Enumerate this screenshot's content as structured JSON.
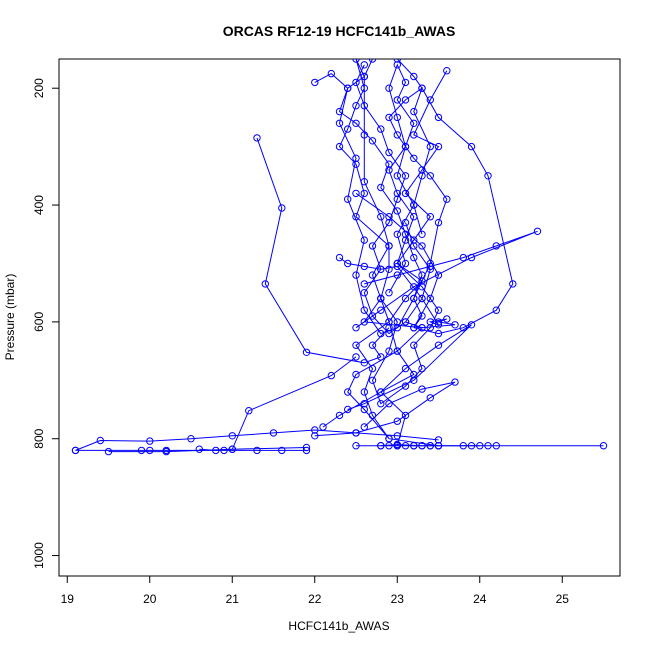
{
  "chart_data": {
    "type": "line",
    "title": "ORCAS RF12-19 HCFC141b_AWAS",
    "xlabel": "HCFC141b_AWAS",
    "ylabel": "Pressure (mbar)",
    "xlim": [
      18.9,
      25.7
    ],
    "ylim": [
      1035,
      150
    ],
    "y_reversed": true,
    "x_ticks": [
      19,
      20,
      21,
      22,
      23,
      24,
      25
    ],
    "y_ticks": [
      200,
      400,
      600,
      800,
      1000
    ],
    "grid": false,
    "legend": "none",
    "line_color": "#0000ff",
    "marker": "open-circle",
    "series": [
      {
        "x": [
          23.5,
          22.9,
          22.6,
          22.4,
          22.5,
          23.0,
          23.3,
          22.6,
          22.8,
          22.7,
          22.9,
          22.5,
          22.6,
          22.5,
          22.3,
          22.4,
          22.5,
          22.6,
          22.5,
          22.6,
          22.6,
          22.6,
          22.8,
          22.9,
          22.9,
          22.8,
          22.9,
          22.5,
          22.7,
          22.6,
          22.7,
          22.9
        ],
        "y": [
          812,
          800,
          750,
          720,
          690,
          650,
          610,
          600,
          560,
          520,
          470,
          420,
          380,
          330,
          300,
          270,
          230,
          200,
          150,
          180,
          280,
          360,
          420,
          470,
          510,
          560,
          600,
          640,
          680,
          720,
          760,
          800
        ]
      },
      {
        "x": [
          23.0,
          23.1,
          22.8,
          23.2,
          23.0,
          22.9,
          23.1,
          23.3,
          23.0,
          23.1,
          23.2,
          23.0,
          22.9,
          23.1,
          23.2,
          23.0,
          23.1,
          23.0,
          22.9,
          23.0,
          23.1,
          23.0,
          23.2,
          23.0,
          23.1,
          22.9
        ],
        "y": [
          812,
          760,
          720,
          690,
          650,
          600,
          560,
          530,
          500,
          460,
          420,
          380,
          340,
          300,
          260,
          220,
          190,
          160,
          200,
          250,
          300,
          350,
          400,
          450,
          500,
          550
        ]
      },
      {
        "x": [
          22.0,
          22.2,
          22.4,
          22.3,
          22.5,
          22.4,
          22.6,
          22.5,
          22.6,
          22.8,
          23.0,
          23.2,
          23.4,
          23.5,
          23.6,
          23.4,
          23.2,
          23.0,
          22.9,
          23.1,
          23.3,
          23.2,
          23.4,
          23.3,
          23.2,
          23.3
        ],
        "y": [
          190,
          175,
          200,
          260,
          320,
          390,
          460,
          520,
          580,
          620,
          610,
          560,
          500,
          430,
          390,
          350,
          320,
          280,
          250,
          220,
          200,
          240,
          300,
          350,
          400,
          450
        ]
      },
      {
        "x": [
          23.6,
          23.4,
          23.2,
          23.5,
          23.3,
          23.1,
          23.4,
          23.2,
          23.0,
          23.3,
          23.5,
          23.4,
          23.2,
          23.3,
          23.1,
          22.8,
          22.7,
          22.9,
          23.0,
          22.8
        ],
        "y": [
          170,
          220,
          280,
          300,
          340,
          380,
          420,
          460,
          500,
          540,
          580,
          610,
          640,
          680,
          710,
          740,
          700,
          650,
          600,
          560
        ]
      },
      {
        "x": [
          22.7,
          22.6,
          22.4,
          22.3,
          22.5,
          22.7,
          22.9,
          22.8,
          23.0,
          23.1,
          23.2,
          23.3,
          23.2,
          23.3,
          23.2,
          23.4,
          23.5,
          23.3,
          22.9,
          22.5
        ],
        "y": [
          150,
          180,
          200,
          240,
          260,
          290,
          330,
          370,
          410,
          450,
          490,
          520,
          560,
          590,
          610,
          560,
          520,
          470,
          420,
          380
        ]
      },
      {
        "x": [
          22.6,
          22.5,
          22.6,
          22.8,
          22.9,
          23.1,
          23.0,
          22.9,
          22.7,
          22.8,
          22.6,
          22.7,
          22.9,
          23.1,
          23.3,
          23.4,
          23.2,
          23.1
        ],
        "y": [
          160,
          190,
          230,
          270,
          310,
          350,
          390,
          430,
          470,
          510,
          550,
          590,
          620,
          600,
          560,
          510,
          470,
          430
        ]
      },
      {
        "x": [
          22.3,
          22.4,
          22.6,
          22.8,
          23.0,
          23.3,
          23.5,
          23.4,
          23.6,
          23.5,
          23.7,
          23.3,
          23.1
        ],
        "y": [
          490,
          500,
          505,
          510,
          505,
          560,
          605,
          600,
          595,
          600,
          605,
          610,
          600
        ]
      },
      {
        "x": [
          23.0,
          23.2,
          23.3,
          23.5,
          23.9,
          24.1,
          24.4,
          24.2,
          23.8,
          23.5,
          23.2
        ],
        "y": [
          150,
          180,
          200,
          250,
          300,
          350,
          535,
          580,
          610,
          620,
          610
        ]
      },
      {
        "x": [
          22.6,
          23.0,
          23.4,
          23.8,
          24.2,
          24.7,
          23.9,
          23.2,
          22.8,
          22.5
        ],
        "y": [
          535,
          520,
          505,
          490,
          470,
          445,
          490,
          540,
          580,
          610
        ]
      },
      {
        "x": [
          22.4,
          22.6,
          23.2,
          23.9,
          23.5,
          23.1,
          22.8,
          22.3,
          22.1
        ],
        "y": [
          750,
          740,
          700,
          605,
          640,
          680,
          720,
          760,
          780
        ]
      },
      {
        "x": [
          22.0,
          22.5,
          23.0,
          23.4,
          23.7,
          23.3,
          22.9,
          22.6
        ],
        "y": [
          795,
          790,
          770,
          730,
          703,
          715,
          740,
          780
        ]
      },
      {
        "x": [
          21.3,
          21.6,
          21.4,
          21.9,
          22.6,
          22.8,
          22.7,
          22.9
        ],
        "y": [
          285,
          405,
          535,
          652,
          670,
          660,
          640,
          610
        ]
      },
      {
        "x": [
          22.5,
          22.2,
          21.2,
          21.0,
          20.8,
          20.6
        ],
        "y": [
          660,
          692,
          752,
          818,
          820,
          818
        ]
      },
      {
        "x": [
          23.5,
          23.0,
          22.5,
          22.0,
          21.5,
          21.0,
          20.5,
          20.0,
          19.4,
          19.1
        ],
        "y": [
          802,
          795,
          790,
          785,
          790,
          795,
          800,
          804,
          803,
          820
        ]
      },
      {
        "x": [
          19.1,
          19.9,
          20.0,
          20.2,
          20.9,
          21.3,
          21.6,
          21.9
        ],
        "y": [
          820,
          820,
          820,
          820,
          820,
          820,
          820,
          820
        ]
      },
      {
        "x": [
          21.9,
          21.0,
          20.2,
          19.5
        ],
        "y": [
          815,
          818,
          822,
          822
        ]
      },
      {
        "x": [
          22.5,
          22.8,
          23.0,
          23.1,
          23.2,
          23.3,
          23.4,
          23.5,
          23.8,
          23.9,
          24.1,
          24.2,
          25.5
        ],
        "y": [
          812,
          812,
          812,
          812,
          812,
          812,
          812,
          812,
          812,
          812,
          812,
          812,
          812
        ]
      },
      {
        "x": [
          22.9,
          23.0,
          23.3,
          23.4,
          23.5,
          24.0,
          23.2,
          23.0,
          22.8
        ],
        "y": [
          812,
          810,
          812,
          812,
          812,
          812,
          812,
          810,
          812
        ]
      }
    ]
  }
}
